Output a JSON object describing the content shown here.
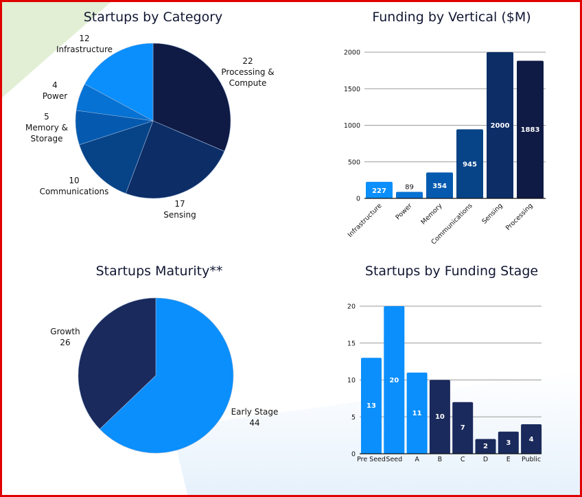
{
  "chart_data": [
    {
      "id": "category",
      "type": "pie",
      "title": "Startups by Category",
      "slices": [
        {
          "label": "Processing & Compute",
          "label_lines": [
            "22",
            "Processing &",
            "Compute"
          ],
          "value": 22,
          "color": "#0f1b45"
        },
        {
          "label": "Sensing",
          "label_lines": [
            "17",
            "Sensing"
          ],
          "value": 17,
          "color": "#0c2d66"
        },
        {
          "label": "Communications",
          "label_lines": [
            "10",
            "Communications"
          ],
          "value": 10,
          "color": "#074387"
        },
        {
          "label": "Memory & Storage",
          "label_lines": [
            "5",
            "Memory &",
            "Storage"
          ],
          "value": 5,
          "color": "#055aaf"
        },
        {
          "label": "Power",
          "label_lines": [
            "4",
            "Power"
          ],
          "value": 4,
          "color": "#0672d3"
        },
        {
          "label": "Infrastructure",
          "label_lines": [
            "12",
            "Infrastructure"
          ],
          "value": 12,
          "color": "#0a8ffc"
        }
      ]
    },
    {
      "id": "vertical",
      "type": "bar",
      "title": "Funding by Vertical ($M)",
      "xlabel": "",
      "ylabel": "",
      "ylim": [
        0,
        2000
      ],
      "yticks": [
        0,
        500,
        1000,
        1500,
        2000
      ],
      "grid": true,
      "categories": [
        "Infrastructure",
        "Power",
        "Memory",
        "Communications",
        "Sensing",
        "Processing"
      ],
      "values": [
        227,
        89,
        354,
        945,
        2000,
        1883
      ],
      "colors": [
        "#0a8ffc",
        "#0672d3",
        "#055aaf",
        "#074387",
        "#0c2d66",
        "#0f1b45"
      ]
    },
    {
      "id": "maturity",
      "type": "pie",
      "title": "Startups Maturity**",
      "slices": [
        {
          "label": "Early Stage",
          "label_lines": [
            "Early Stage",
            "44"
          ],
          "value": 44,
          "color": "#0a8ffc"
        },
        {
          "label": "Growth",
          "label_lines": [
            "Growth",
            "26"
          ],
          "value": 26,
          "color": "#1b2a5c"
        }
      ]
    },
    {
      "id": "stage",
      "type": "bar",
      "title": "Startups by Funding Stage",
      "xlabel": "",
      "ylabel": "",
      "ylim": [
        0,
        20
      ],
      "yticks": [
        0,
        5,
        10,
        15,
        20
      ],
      "grid": true,
      "categories": [
        "Pre Seed",
        "Seed",
        "A",
        "B",
        "C",
        "D",
        "E",
        "Public"
      ],
      "values": [
        13,
        20,
        11,
        10,
        7,
        2,
        3,
        4
      ],
      "colors": [
        "#0a8ffc",
        "#0a8ffc",
        "#0a8ffc",
        "#1b2a5c",
        "#1b2a5c",
        "#1b2a5c",
        "#1b2a5c",
        "#1b2a5c"
      ]
    }
  ]
}
